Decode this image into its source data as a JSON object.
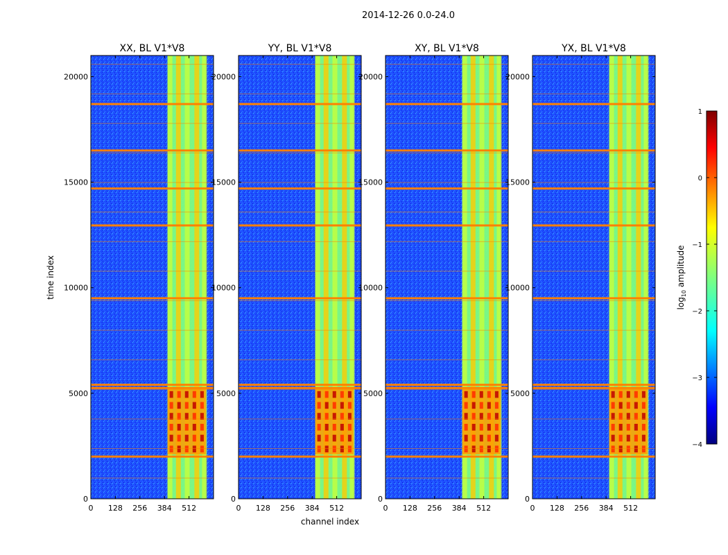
{
  "figure": {
    "suptitle": "2014-12-26 0.0-24.0",
    "xlabel": "channel index",
    "ylabel": "time index"
  },
  "chart_data": {
    "type": "heatmap",
    "title": "2014-12-26 0.0-24.0",
    "xlabel": "channel index",
    "ylabel": "time index",
    "xlim": [
      0,
      640
    ],
    "ylim": [
      0,
      21000
    ],
    "x_ticks": [
      0,
      128,
      256,
      384,
      512
    ],
    "y_ticks": [
      0,
      5000,
      10000,
      15000,
      20000
    ],
    "panels": [
      {
        "title": "XX, BL V1*V8"
      },
      {
        "title": "YY, BL V1*V8"
      },
      {
        "title": "XY, BL V1*V8"
      },
      {
        "title": "YX, BL V1*V8"
      }
    ],
    "colorbar": {
      "label_main": "log",
      "label_sub": "10",
      "label_tail": " amplitude",
      "range": [
        -4,
        1
      ],
      "ticks": [
        -4,
        -3,
        -2,
        -1,
        0,
        1
      ],
      "tick_labels": [
        "−4",
        "−3",
        "−2",
        "−1",
        "0",
        "1"
      ],
      "colormap": "jet"
    },
    "data_description": {
      "flagged_time_rows": [
        2000,
        5250,
        5400,
        9500,
        12950,
        14700,
        16500,
        18700
      ],
      "bright_channel_band": [
        400,
        600
      ],
      "high_amplitude_time_range": [
        2100,
        5200
      ]
    }
  },
  "colors": {
    "background_low": "#1a3cff",
    "band_mid": "#7fff7f",
    "band_high": "#ffcc00",
    "flag_line": "#ff8000",
    "peak": "#c00000"
  }
}
